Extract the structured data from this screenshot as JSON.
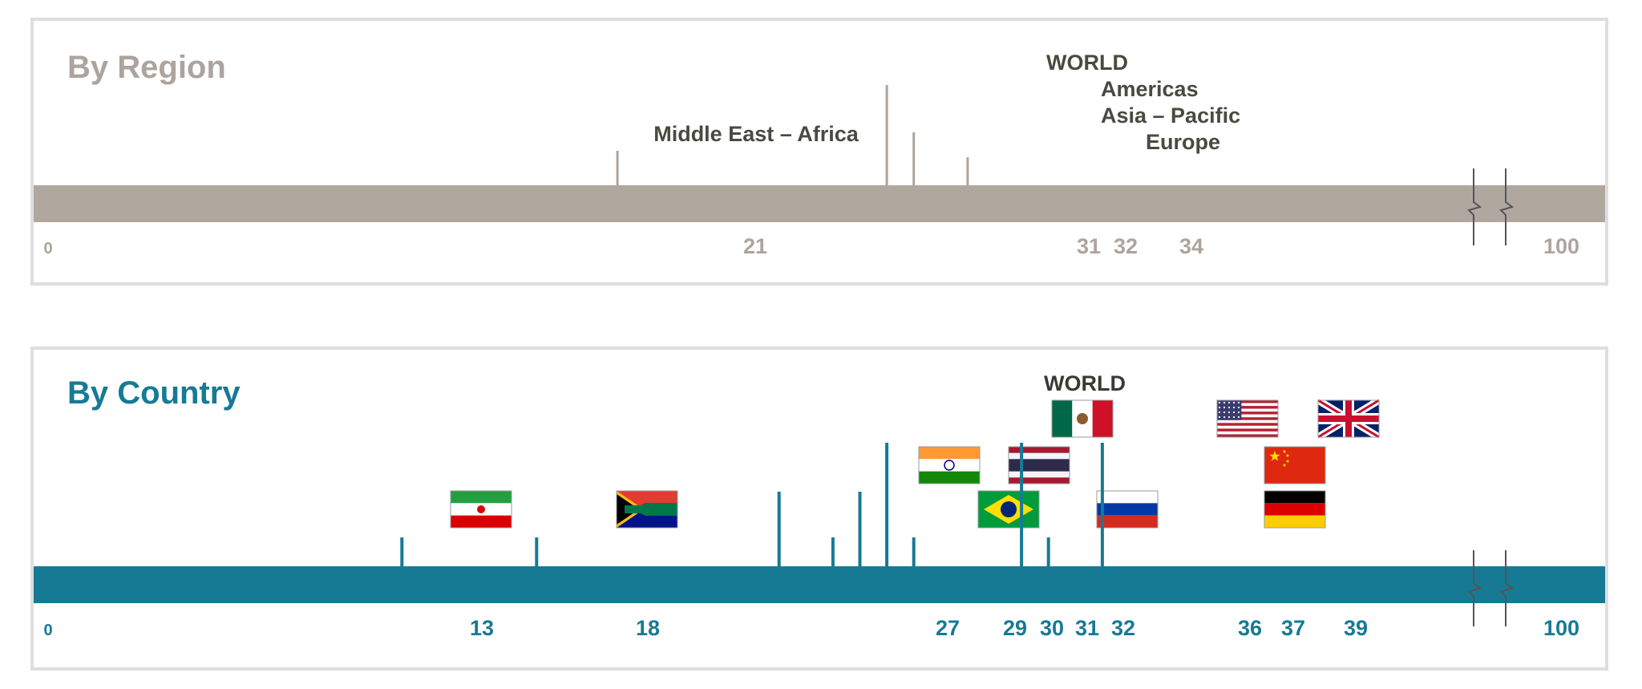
{
  "chart_data": [
    {
      "type": "bar",
      "title": "By Region",
      "xlim": [
        0,
        100
      ],
      "axis_break": true,
      "bar_color": "#b0a79f",
      "tick_color": "#aca49d",
      "label_color": "#4a4a40",
      "tick_labels": {
        "min": "0",
        "max": "100"
      },
      "points": [
        {
          "label": "Middle East – Africa",
          "value": 21,
          "value_label": "21"
        },
        {
          "label": "WORLD",
          "value": 31,
          "value_label": "31"
        },
        {
          "label": "Americas",
          "value": 32,
          "value_label": "32"
        },
        {
          "label": "Asia – Pacific",
          "value": 32
        },
        {
          "label": "Europe",
          "value": 34,
          "value_label": "34"
        }
      ]
    },
    {
      "type": "bar",
      "title": "By Country",
      "xlim": [
        0,
        100
      ],
      "axis_break": true,
      "bar_color": "#167a95",
      "tick_color": "#167a95",
      "label_color": "#3a3a34",
      "tick_labels": {
        "min": "0",
        "max": "100"
      },
      "world_label": "WORLD",
      "points": [
        {
          "flag": "iran-flag",
          "value": 13,
          "value_label": "13"
        },
        {
          "flag": "south-africa-flag",
          "value": 18,
          "value_label": "18"
        },
        {
          "flag": "india-flag",
          "value": 27,
          "value_label": "27"
        },
        {
          "flag": "brazil-flag",
          "value": 29,
          "value_label": "29"
        },
        {
          "flag": "thailand-flag",
          "value": 30,
          "value_label": "30"
        },
        {
          "flag": "mexico-flag",
          "value": 31,
          "value_label": "31",
          "world": true
        },
        {
          "flag": "russia-flag",
          "value": 32,
          "value_label": "32"
        },
        {
          "flag": "usa-flag",
          "value": 36,
          "value_label": "36"
        },
        {
          "flag": "china-flag",
          "value": 37,
          "value_label": "37"
        },
        {
          "flag": "germany-flag",
          "value": 37
        },
        {
          "flag": "uk-flag",
          "value": 39,
          "value_label": "39"
        }
      ]
    }
  ]
}
